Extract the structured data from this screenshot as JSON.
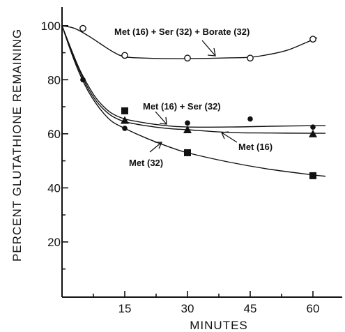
{
  "chart_data": {
    "type": "scatter",
    "title": "",
    "xlabel": "MINUTES",
    "ylabel": "PERCENT GLUTATHIONE REMAINING",
    "xlim": [
      0,
      64
    ],
    "ylim": [
      0,
      102
    ],
    "x_ticks": [
      15,
      30,
      45,
      60
    ],
    "y_ticks": [
      20,
      40,
      60,
      80,
      100
    ],
    "grid": false,
    "series": [
      {
        "name": "Met (16) + Ser (32) + Borate (32)",
        "marker": "open-circle",
        "x": [
          5,
          15,
          30,
          45,
          60
        ],
        "y": [
          99,
          89,
          88,
          88,
          95
        ]
      },
      {
        "name": "Met (16) + Ser (32)",
        "marker": "filled-circle",
        "x": [
          5,
          15,
          30,
          45,
          60
        ],
        "y": [
          80,
          62,
          64,
          65.5,
          62.5
        ]
      },
      {
        "name": "Met (16)",
        "marker": "filled-triangle",
        "x": [
          15,
          30,
          60
        ],
        "y": [
          65,
          61.5,
          60
        ]
      },
      {
        "name": "Met (32)",
        "marker": "filled-square",
        "x": [
          15,
          30,
          60
        ],
        "y": [
          68.5,
          53,
          44.5
        ]
      }
    ],
    "curves": [
      {
        "series": "Met (16) + Ser (32) + Borate (32)",
        "x": [
          0,
          3,
          6,
          9,
          12,
          15,
          20,
          25,
          30,
          35,
          40,
          45,
          50,
          54,
          58,
          61
        ],
        "y": [
          100,
          99,
          96.5,
          93.5,
          90.5,
          88.5,
          88,
          87.8,
          87.8,
          87.9,
          88.1,
          88.3,
          89.5,
          91,
          93.5,
          95.5
        ]
      },
      {
        "series": "Met (16) + Ser (32)",
        "x": [
          0,
          2,
          4,
          6,
          8,
          10,
          12,
          15,
          20,
          25,
          30,
          40,
          50,
          60,
          63
        ],
        "y": [
          100,
          92,
          84.5,
          78.5,
          73.5,
          70,
          67.5,
          65.5,
          64,
          63,
          62.5,
          62.5,
          62.8,
          63,
          63
        ]
      },
      {
        "series": "Met (16)",
        "x": [
          0,
          2,
          4,
          6,
          8,
          10,
          12,
          15,
          20,
          25,
          30,
          40,
          50,
          60,
          63
        ],
        "y": [
          100,
          91.5,
          84,
          77.5,
          72.5,
          69,
          66.5,
          64.5,
          63,
          62,
          61.5,
          60.5,
          60.3,
          60.2,
          60.2
        ]
      },
      {
        "series": "Met (32)",
        "x": [
          0,
          2,
          4,
          6,
          8,
          10,
          12,
          15,
          20,
          25,
          30,
          40,
          50,
          60,
          63
        ],
        "y": [
          100,
          91,
          83,
          76.5,
          71.5,
          67.5,
          64.5,
          62,
          58.5,
          55.5,
          53,
          49.5,
          46.8,
          44.8,
          44.3
        ]
      }
    ],
    "annotations": [
      "Met (16) + Ser (32) + Borate (32)",
      "Met (16) + Ser (32)",
      "Met (16)",
      "Met (32)"
    ]
  }
}
